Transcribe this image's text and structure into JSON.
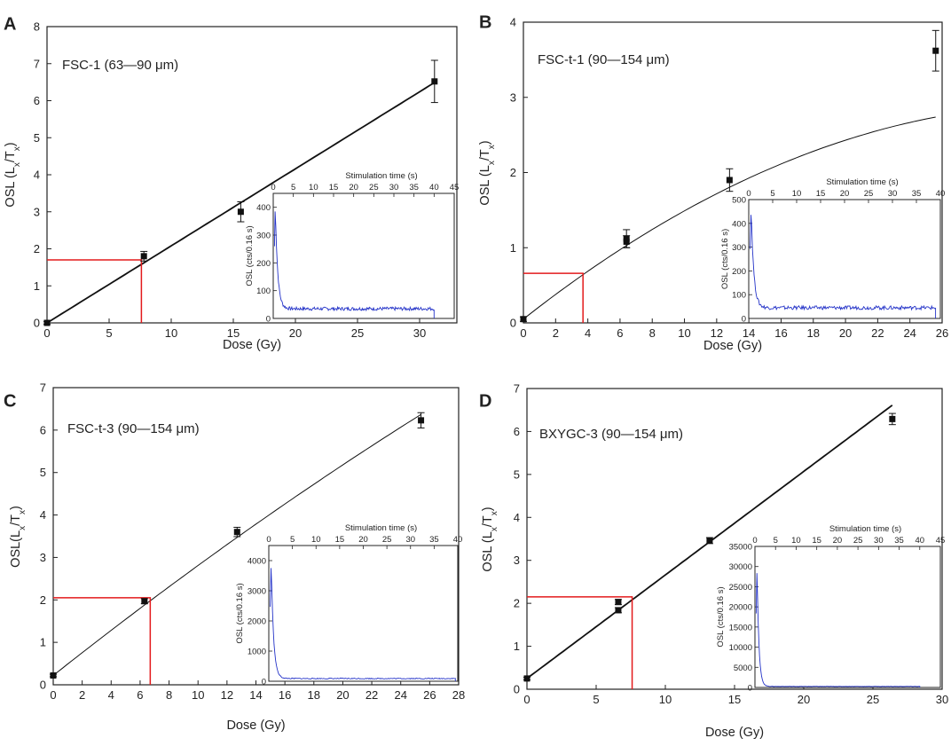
{
  "figure_title": "OSL dose-response curves for four samples",
  "colors": {
    "curve": "#111111",
    "axis": "#222222",
    "marker": "#111111",
    "red": "#e31a1c",
    "inset": "#2433c8"
  },
  "chart_data": [
    {
      "panel": "A",
      "type": "scatter",
      "title": "FSC-1 (63—90 μm)",
      "xlabel": "Dose (Gy)",
      "ylabel_main": "OSL (L",
      "ylabel_sub1": "x",
      "ylabel_mid": "/T",
      "ylabel_sub2": "x",
      "ylabel_end": ")",
      "xlim": [
        0,
        33
      ],
      "ylim": [
        0,
        8
      ],
      "xticks": [
        0,
        5,
        10,
        15,
        20,
        25,
        30
      ],
      "yticks": [
        0,
        1,
        2,
        3,
        4,
        5,
        6,
        7,
        8
      ],
      "points": [
        {
          "x": 0,
          "y": 0.0,
          "err": 0.04
        },
        {
          "x": 7.8,
          "y": 1.8,
          "err": 0.13
        },
        {
          "x": 15.6,
          "y": 3.0,
          "err": 0.27
        },
        {
          "x": 31.2,
          "y": 6.52,
          "err": 0.57
        }
      ],
      "curve": {
        "a": 0.208,
        "b": 0.0
      },
      "red_marker": {
        "x": 7.6,
        "y": 1.7
      },
      "inset": {
        "xlabel": "Stimulation time (s)",
        "ylabel": "OSL (cts/0.16 s)",
        "xlim": [
          0,
          45
        ],
        "ylim": [
          0,
          450
        ],
        "xticks": [
          0,
          5,
          10,
          15,
          20,
          25,
          30,
          35,
          40,
          45
        ],
        "yticks": [
          0,
          100,
          200,
          300,
          400
        ],
        "peak": 410,
        "background": 35,
        "end_x": 40,
        "decay": 0.6
      }
    },
    {
      "panel": "B",
      "type": "scatter",
      "title": "FSC-t-1 (90—154 μm)",
      "xlabel": "Dose (Gy)",
      "ylabel_main": "OSL (L",
      "ylabel_sub1": "x",
      "ylabel_mid": "/T",
      "ylabel_sub2": "x",
      "ylabel_end": ")",
      "xlim": [
        0,
        26
      ],
      "ylim": [
        0,
        4
      ],
      "xticks": [
        0,
        2,
        4,
        6,
        8,
        10,
        12,
        14,
        16,
        18,
        20,
        22,
        24,
        26
      ],
      "yticks": [
        0,
        1,
        2,
        3,
        4
      ],
      "points": [
        {
          "x": 0,
          "y": 0.05,
          "err": 0.03
        },
        {
          "x": 6.4,
          "y": 1.12,
          "err": 0.12
        },
        {
          "x": 6.4,
          "y": 1.08,
          "err": 0.08
        },
        {
          "x": 12.8,
          "y": 1.9,
          "err": 0.15
        },
        {
          "x": 25.6,
          "y": 3.62,
          "err": 0.27
        }
      ],
      "curve": {
        "a": 0.169,
        "b": 0.0025
      },
      "red_marker": {
        "x": 3.7,
        "y": 0.66
      },
      "inset": {
        "xlabel": "Stimulation time (s)",
        "ylabel": "OSL (cts/0.16 s)",
        "xlim": [
          0,
          40
        ],
        "ylim": [
          0,
          500
        ],
        "xticks": [
          0,
          5,
          10,
          15,
          20,
          25,
          30,
          35,
          40
        ],
        "yticks": [
          0,
          100,
          200,
          300,
          400,
          500
        ],
        "peak": 470,
        "background": 45,
        "end_x": 39,
        "decay": 0.55
      }
    },
    {
      "panel": "C",
      "type": "scatter",
      "title": "FSC-t-3 (90—154 μm)",
      "xlabel": "Dose (Gy)",
      "ylabel_main": "OSL(L",
      "ylabel_sub1": "x",
      "ylabel_mid": "/T",
      "ylabel_sub2": "x",
      "ylabel_end": ")",
      "xlim": [
        0,
        28
      ],
      "ylim": [
        0,
        7
      ],
      "xticks": [
        0,
        2,
        4,
        6,
        8,
        10,
        12,
        14,
        16,
        18,
        20,
        22,
        24,
        26,
        28
      ],
      "yticks": [
        0,
        1,
        2,
        3,
        4,
        5,
        6,
        7
      ],
      "points": [
        {
          "x": 0,
          "y": 0.22,
          "err": 0.03
        },
        {
          "x": 6.3,
          "y": 1.97,
          "err": 0.06
        },
        {
          "x": 12.7,
          "y": 3.6,
          "err": 0.11
        },
        {
          "x": 25.4,
          "y": 6.23,
          "err": 0.18
        }
      ],
      "curve": {
        "a": 0.27,
        "b": 0.0011
      },
      "red_marker": {
        "x": 6.7,
        "y": 2.05
      },
      "inset": {
        "xlabel": "Stimulation time (s)",
        "ylabel": "OSL (cts/0.16 s)",
        "xlim": [
          0,
          40
        ],
        "ylim": [
          0,
          4500
        ],
        "xticks": [
          0,
          5,
          10,
          15,
          20,
          25,
          30,
          35,
          40
        ],
        "yticks": [
          0,
          1000,
          2000,
          3000,
          4000
        ],
        "peak": 4050,
        "background": 90,
        "end_x": 39.5,
        "decay": 0.5
      }
    },
    {
      "panel": "D",
      "type": "scatter",
      "title": "BXYGC-3 (90—154 μm)",
      "xlabel": "Dose (Gy)",
      "ylabel_main": "OSL (L",
      "ylabel_sub1": "x",
      "ylabel_mid": "/T",
      "ylabel_sub2": "x",
      "ylabel_end": ")",
      "xlim": [
        0,
        30
      ],
      "ylim": [
        0,
        7
      ],
      "xticks": [
        0,
        5,
        10,
        15,
        20,
        25,
        30
      ],
      "yticks": [
        0,
        1,
        2,
        3,
        4,
        5,
        6,
        7
      ],
      "points": [
        {
          "x": 0,
          "y": 0.25,
          "err": 0.03
        },
        {
          "x": 6.6,
          "y": 2.03,
          "err": 0.06
        },
        {
          "x": 6.6,
          "y": 1.84,
          "err": 0.06
        },
        {
          "x": 13.2,
          "y": 3.46,
          "err": 0.07
        },
        {
          "x": 26.4,
          "y": 6.29,
          "err": 0.13
        }
      ],
      "curve": {
        "a": 0.241,
        "b": 0.0
      },
      "red_marker": {
        "x": 7.6,
        "y": 2.15
      },
      "inset": {
        "xlabel": "Stimulation time (s)",
        "ylabel": "OSL (cts/0.16 s)",
        "xlim": [
          0,
          45
        ],
        "ylim": [
          0,
          35000
        ],
        "xticks": [
          0,
          5,
          10,
          15,
          20,
          25,
          30,
          35,
          40,
          45
        ],
        "yticks": [
          0,
          5000,
          10000,
          15000,
          20000,
          25000,
          30000,
          35000
        ],
        "peak": 30500,
        "background": 250,
        "end_x": 40,
        "decay": 0.45
      }
    }
  ]
}
